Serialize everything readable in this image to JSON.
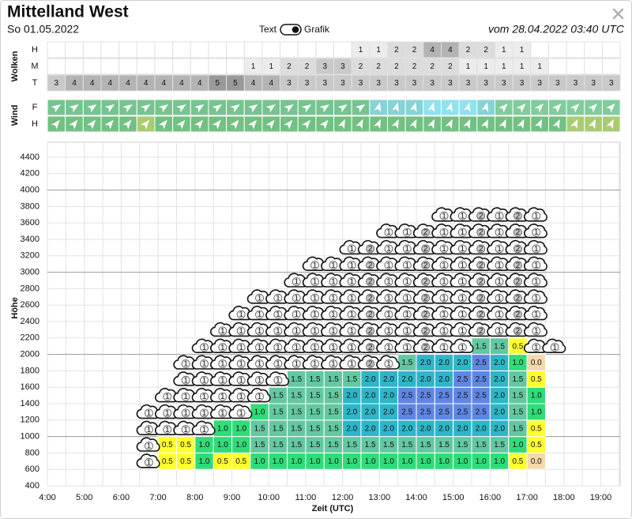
{
  "header": {
    "title": "Mittelland West",
    "date": "So 01.05.2022",
    "toggle_text": "Text",
    "toggle_graphic": "Grafik",
    "issued": "vom 28.04.2022 03:40 UTC"
  },
  "clouds": {
    "label": "Wolken",
    "rows": [
      {
        "name": "H",
        "values": [
          null,
          null,
          null,
          null,
          null,
          null,
          null,
          null,
          null,
          null,
          null,
          null,
          null,
          null,
          null,
          null,
          null,
          1,
          1,
          2,
          2,
          4,
          4,
          2,
          2,
          1,
          1,
          null,
          null,
          null,
          null,
          null
        ]
      },
      {
        "name": "M",
        "values": [
          null,
          null,
          null,
          null,
          null,
          null,
          null,
          null,
          null,
          null,
          null,
          1,
          1,
          2,
          2,
          3,
          3,
          2,
          2,
          2,
          2,
          2,
          2,
          1,
          1,
          1,
          1,
          1,
          null,
          null,
          null,
          null
        ]
      },
      {
        "name": "T",
        "values": [
          3,
          4,
          4,
          4,
          4,
          4,
          4,
          4,
          4,
          5,
          5,
          4,
          4,
          3,
          3,
          3,
          3,
          3,
          3,
          3,
          3,
          3,
          3,
          3,
          3,
          3,
          3,
          3,
          3,
          3,
          3,
          3
        ]
      }
    ]
  },
  "wind": {
    "label": "Wind",
    "rows": [
      {
        "name": "F"
      },
      {
        "name": "H"
      }
    ]
  },
  "chart": {
    "y_label": "Höhe",
    "x_label": "Zeit (UTC)",
    "yticks": [
      400,
      600,
      800,
      1000,
      1200,
      1400,
      1600,
      1800,
      2000,
      2200,
      2400,
      2600,
      2800,
      3000,
      3200,
      3400,
      3600,
      3800,
      4000,
      4200,
      4400
    ],
    "xticks": [
      "4:00",
      "5:00",
      "6:00",
      "7:00",
      "8:00",
      "9:00",
      "10:00",
      "11:00",
      "12:00",
      "13:00",
      "14:00",
      "15:00",
      "16:00",
      "17:00",
      "18:00",
      "19:00"
    ],
    "lift": [
      [
        null,
        "0.5",
        "0.5",
        "1.0",
        "0.5",
        "0.5",
        "1.0",
        "1.0",
        "1.0",
        "1.0",
        "1.0",
        "1.0",
        "1.0",
        "1.0",
        "1.0",
        "1.0",
        "1.0",
        "1.0",
        "1.0",
        "1.0",
        "0.5",
        "0.0",
        null
      ],
      [
        null,
        "0.5",
        "0.5",
        "1.0",
        "1.0",
        "1.0",
        "1.5",
        "1.5",
        "1.5",
        "1.5",
        "1.5",
        "1.5",
        "1.5",
        "1.5",
        "1.5",
        "1.5",
        "1.5",
        "1.5",
        "1.5",
        "1.5",
        "1.0",
        "0.5",
        null
      ],
      [
        null,
        null,
        null,
        null,
        "1.0",
        "1.0",
        "1.5",
        "1.5",
        "1.5",
        "1.5",
        "1.5",
        "2.0",
        "2.0",
        "2.0",
        "2.0",
        "2.0",
        "2.0",
        "2.0",
        "2.0",
        "2.0",
        "1.5",
        "0.5",
        null
      ],
      [
        null,
        null,
        null,
        null,
        null,
        null,
        "1.0",
        "1.5",
        "1.5",
        "1.5",
        "1.5",
        "2.0",
        "2.0",
        "2.0",
        "2.5",
        "2.5",
        "2.5",
        "2.5",
        "2.5",
        "2.0",
        "1.5",
        "1.0",
        null
      ],
      [
        null,
        null,
        null,
        null,
        null,
        null,
        null,
        "1.5",
        "1.5",
        "1.5",
        "1.5",
        "2.0",
        "2.0",
        "2.0",
        "2.5",
        "2.5",
        "2.5",
        "2.5",
        "2.5",
        "2.0",
        "1.5",
        "1.0",
        null
      ],
      [
        null,
        null,
        null,
        null,
        null,
        null,
        null,
        null,
        "1.5",
        "1.5",
        "1.5",
        "1.5",
        "2.0",
        "2.0",
        "2.0",
        "2.0",
        "2.0",
        "2.5",
        "2.5",
        "2.0",
        "1.5",
        "0.5",
        null
      ],
      [
        null,
        null,
        null,
        null,
        null,
        null,
        null,
        null,
        null,
        null,
        null,
        null,
        null,
        null,
        "1.5",
        "2.0",
        "2.0",
        "2.0",
        "2.5",
        "2.0",
        "1.0",
        "0.0",
        null
      ],
      [
        null,
        null,
        null,
        null,
        null,
        null,
        null,
        null,
        null,
        null,
        null,
        null,
        null,
        null,
        null,
        null,
        null,
        null,
        "1.5",
        "1.5",
        "0.5",
        null,
        null
      ]
    ],
    "cloud": [
      [
        1,
        null,
        null,
        null,
        null,
        null,
        null,
        null,
        null,
        null,
        null,
        null,
        null,
        null,
        null,
        null,
        null,
        null,
        null,
        null,
        null,
        null,
        null
      ],
      [
        1,
        null,
        null,
        null,
        null,
        null,
        null,
        null,
        null,
        null,
        null,
        null,
        null,
        null,
        null,
        null,
        null,
        null,
        null,
        null,
        null,
        null,
        null
      ],
      [
        1,
        1,
        1,
        1,
        null,
        null,
        null,
        null,
        null,
        null,
        null,
        null,
        null,
        null,
        null,
        null,
        null,
        null,
        null,
        null,
        null,
        null,
        null
      ],
      [
        1,
        1,
        1,
        1,
        1,
        1,
        null,
        null,
        null,
        null,
        null,
        null,
        null,
        null,
        null,
        null,
        null,
        null,
        null,
        null,
        null,
        null,
        null
      ],
      [
        null,
        1,
        1,
        1,
        1,
        1,
        1,
        null,
        null,
        null,
        null,
        null,
        null,
        null,
        null,
        null,
        null,
        null,
        null,
        null,
        null,
        null,
        null
      ],
      [
        null,
        null,
        1,
        1,
        1,
        1,
        1,
        1,
        null,
        null,
        null,
        null,
        null,
        null,
        null,
        null,
        null,
        null,
        null,
        null,
        null,
        null,
        null
      ],
      [
        null,
        null,
        1,
        1,
        1,
        1,
        1,
        1,
        1,
        1,
        1,
        1,
        2,
        1,
        null,
        null,
        null,
        null,
        null,
        null,
        null,
        null,
        null
      ],
      [
        null,
        null,
        null,
        1,
        1,
        1,
        1,
        1,
        1,
        1,
        1,
        1,
        2,
        1,
        1,
        2,
        1,
        1,
        null,
        null,
        null,
        1,
        1
      ],
      [
        null,
        null,
        null,
        null,
        1,
        1,
        1,
        1,
        1,
        1,
        1,
        1,
        2,
        1,
        1,
        2,
        1,
        1,
        2,
        1,
        2,
        1,
        null
      ],
      [
        null,
        null,
        null,
        null,
        null,
        1,
        1,
        1,
        1,
        1,
        1,
        1,
        2,
        1,
        1,
        2,
        1,
        1,
        2,
        1,
        2,
        1,
        null
      ],
      [
        null,
        null,
        null,
        null,
        null,
        null,
        1,
        1,
        1,
        1,
        1,
        1,
        2,
        1,
        1,
        2,
        1,
        1,
        2,
        1,
        2,
        1,
        null
      ],
      [
        null,
        null,
        null,
        null,
        null,
        null,
        null,
        null,
        1,
        1,
        1,
        1,
        2,
        1,
        1,
        2,
        1,
        1,
        2,
        1,
        2,
        1,
        null
      ],
      [
        null,
        null,
        null,
        null,
        null,
        null,
        null,
        null,
        null,
        1,
        1,
        1,
        2,
        1,
        1,
        2,
        1,
        1,
        2,
        1,
        2,
        1,
        null
      ],
      [
        null,
        null,
        null,
        null,
        null,
        null,
        null,
        null,
        null,
        null,
        null,
        1,
        2,
        1,
        1,
        2,
        1,
        1,
        2,
        1,
        2,
        1,
        null
      ],
      [
        null,
        null,
        null,
        null,
        null,
        null,
        null,
        null,
        null,
        null,
        null,
        null,
        null,
        1,
        1,
        2,
        1,
        1,
        2,
        1,
        2,
        1,
        null
      ],
      [
        null,
        null,
        null,
        null,
        null,
        null,
        null,
        null,
        null,
        null,
        null,
        null,
        null,
        null,
        null,
        null,
        1,
        1,
        2,
        1,
        2,
        1,
        null
      ]
    ]
  }
}
